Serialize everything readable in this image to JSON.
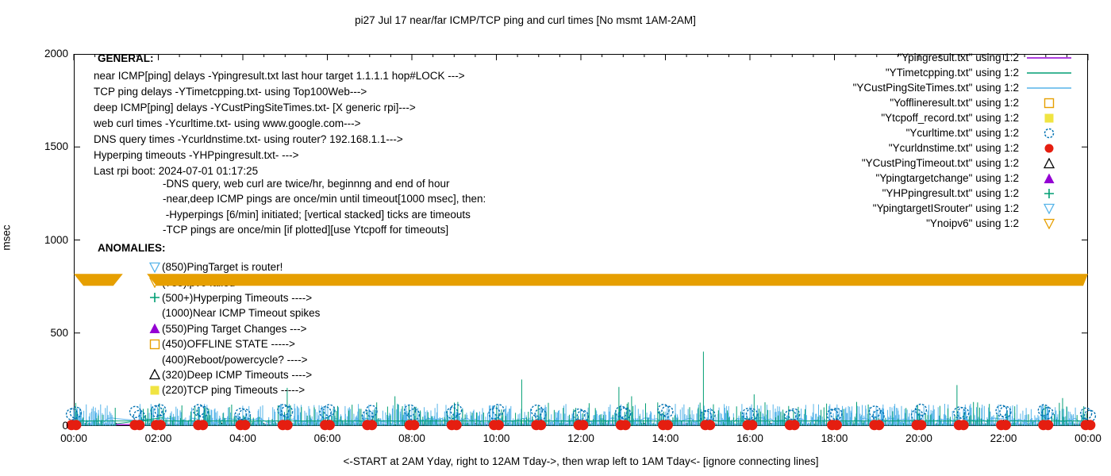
{
  "title": "pi27 Jul 17  near/far ICMP/TCP ping and curl times [No msmt 1AM-2AM]",
  "y_axis": {
    "label": "msec",
    "ticks": [
      "0",
      "500",
      "1000",
      "1500",
      "2000"
    ]
  },
  "x_axis": {
    "ticks": [
      "00:00",
      "02:00",
      "04:00",
      "06:00",
      "08:00",
      "10:00",
      "12:00",
      "14:00",
      "16:00",
      "18:00",
      "20:00",
      "22:00",
      "00:00"
    ],
    "note": "<-START at 2AM Yday, right to 12AM Tday->, then wrap left to 1AM Tday<- [ignore connecting lines]"
  },
  "legend": [
    {
      "label": "\"Ypingresult.txt\" using 1:2",
      "marker": "line",
      "color": "#9400d3"
    },
    {
      "label": "\"YTimetcpping.txt\" using 1:2",
      "marker": "line",
      "color": "#009e73"
    },
    {
      "label": "\"YCustPingSiteTimes.txt\" using 1:2",
      "marker": "line",
      "color": "#56b4e9"
    },
    {
      "label": "\"Yofflineresult.txt\" using 1:2",
      "marker": "square-open",
      "color": "#e69f00"
    },
    {
      "label": "\"Ytcpoff_record.txt\" using 1:2",
      "marker": "square-filled",
      "color": "#f0e442"
    },
    {
      "label": "\"Ycurltime.txt\" using 1:2",
      "marker": "circle-open",
      "color": "#0072b2"
    },
    {
      "label": "\"Ycurldnstime.txt\" using 1:2",
      "marker": "circle-filled",
      "color": "#e51e10"
    },
    {
      "label": "\"YCustPingTimeout.txt\" using 1:2",
      "marker": "triangle-open",
      "color": "#000000"
    },
    {
      "label": "\"Ypingtargetchange\" using 1:2",
      "marker": "triangle-filled",
      "color": "#9400d3"
    },
    {
      "label": "\"YHPpingresult.txt\" using 1:2",
      "marker": "plus",
      "color": "#009e73"
    },
    {
      "label": "\"YpingtargetISrouter\" using 1:2",
      "marker": "tri-down-open",
      "color": "#56b4e9"
    },
    {
      "label": "\"Ynoipv6\" using 1:2",
      "marker": "tri-down-open",
      "color": "#e69f00"
    }
  ],
  "general": {
    "heading": "GENERAL:",
    "lines": [
      "near ICMP[ping] delays -Ypingresult.txt last hour target 1.1.1.1 hop#LOCK --->",
      "TCP ping delays -YTimetcpping.txt- using Top100Web--->",
      "deep ICMP[ping] delays -YCustPingSiteTimes.txt- [X generic rpi]--->",
      "web curl times -Ycurltime.txt- using www.google.com--->",
      "DNS query times -Ycurldnstime.txt- using router? 192.168.1.1--->",
      "Hyperping timeouts -YHPpingresult.txt- --->",
      "Last rpi boot: 2024-07-01 01:17:25"
    ],
    "notes": [
      "-DNS query, web curl are twice/hr, beginnng and end of hour",
      "-near,deep ICMP pings are once/min until timeout[1000 msec], then:",
      " -Hyperpings [6/min] initiated; [vertical stacked] ticks are timeouts",
      "-TCP pings are once/min [if plotted][use Ytcpoff for timeouts]"
    ]
  },
  "anomalies": {
    "heading": "ANOMALIES:",
    "items": [
      {
        "marker": "tri-down-open",
        "color": "#56b4e9",
        "text": "(850)PingTarget is router!"
      },
      {
        "marker": "tri-down-open",
        "color": "#e69f00",
        "text": "(785)ipv6 failed ---->",
        "obscured_by_band": true
      },
      {
        "marker": "plus",
        "color": "#009e73",
        "text": "(500+)Hyperping Timeouts ---->"
      },
      {
        "marker": "none",
        "color": "",
        "text": "(1000)Near ICMP Timeout spikes"
      },
      {
        "marker": "triangle-filled",
        "color": "#9400d3",
        "text": "(550)Ping Target Changes --->"
      },
      {
        "marker": "square-open",
        "color": "#e69f00",
        "text": "(450)OFFLINE STATE ----->"
      },
      {
        "marker": "none",
        "color": "",
        "text": "(400)Reboot/powercycle? ---->"
      },
      {
        "marker": "triangle-open",
        "color": "#000000",
        "text": "(320)Deep ICMP Timeouts ---->"
      },
      {
        "marker": "square-filled",
        "color": "#f0e442",
        "text": "(220)TCP ping Timeouts ----->"
      }
    ]
  },
  "chart_data": {
    "type": "line",
    "title": "pi27 Jul 17  near/far ICMP/TCP ping and curl times [No msmt 1AM-2AM]",
    "xlabel": "<-START at 2AM Yday, right to 12AM Tday->, then wrap left to 1AM Tday<- [ignore connecting lines]",
    "ylabel": "msec",
    "x_range_hours": [
      0,
      24
    ],
    "x_tick_labels": [
      "00:00",
      "02:00",
      "04:00",
      "06:00",
      "08:00",
      "10:00",
      "12:00",
      "14:00",
      "16:00",
      "18:00",
      "20:00",
      "22:00",
      "00:00"
    ],
    "ylim": [
      0,
      2000
    ],
    "y_ticks": [
      0,
      500,
      1000,
      1500,
      2000
    ],
    "grid": false,
    "legend_position": "top-right",
    "no_measurement_gap_hours": [
      1.0,
      1.5
    ],
    "ipv6_fail_band": {
      "series": "Ynoipv6",
      "color": "#e69f00",
      "y_msec": [
        754,
        818
      ],
      "segments_hours": [
        [
          0,
          1.16
        ],
        [
          1.73,
          24
        ]
      ],
      "note": "densely stacked open down-triangles forming a solid band across the whole day"
    },
    "hourly_markers": {
      "dns_red_dots": {
        "series": "Ycurldnstime.txt",
        "color": "#e51e10",
        "msec": 5,
        "per_hour": 2,
        "note": "pair of filled circles at every hour mark, on the x-axis"
      },
      "curl_blue_circles": {
        "series": "Ycurltime.txt",
        "color": "#0072b2",
        "msec_range": [
          52,
          88
        ],
        "per_hour": 2,
        "note": "pair of open circles at every hour mark"
      }
    },
    "background_traces": {
      "near_icmp_line": {
        "series": "Ypingresult.txt",
        "color": "#9400d3",
        "msec": 8,
        "note": "flat line at ~8 msec along the axis"
      },
      "tcp_ping": {
        "series": "YTimetcpping.txt",
        "color": "#009e73",
        "base_msec": 27,
        "spike_range_msec": [
          5,
          130
        ],
        "tall_spikes_hour_msec": [
          [
            5.05,
            205
          ],
          [
            7.6,
            160
          ],
          [
            10.6,
            250
          ],
          [
            12.9,
            210
          ],
          [
            13.2,
            160
          ],
          [
            14.9,
            400
          ],
          [
            16.1,
            170
          ],
          [
            20.9,
            220
          ],
          [
            23.4,
            150
          ]
        ]
      },
      "deep_icmp": {
        "series": "YCustPingSiteTimes.txt",
        "color": "#56b4e9",
        "meander_range_msec": [
          16,
          44
        ],
        "spike_range_msec": [
          8,
          120
        ],
        "note": "dense once/min spikes 0-120 msec across the whole day"
      }
    },
    "connector_line": {
      "color": "#009e73",
      "from": [
        1.0,
        12
      ],
      "to": [
        2.1,
        45
      ],
      "note": "ignore connecting lines across the 1AM-2AM gap"
    },
    "unplotted_series": [
      "Yofflineresult.txt",
      "Ytcpoff_record.txt",
      "YCustPingTimeout.txt",
      "Ypingtargetchange",
      "YHPpingresult.txt",
      "YpingtargetISrouter"
    ]
  }
}
